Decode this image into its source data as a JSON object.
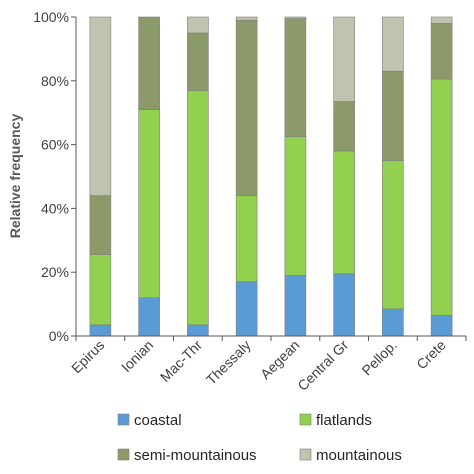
{
  "chart_data": {
    "type": "bar",
    "stacked": true,
    "percent_stacked": true,
    "ylabel": "Relative frequency",
    "xlabel": "",
    "ylim": [
      0,
      100
    ],
    "y_ticks": [
      "0%",
      "20%",
      "40%",
      "60%",
      "80%",
      "100%"
    ],
    "categories": [
      "Epirus",
      "Ionian",
      "Mac-Thr",
      "Thessaly",
      "Aegean",
      "Central Gr",
      "Pellop.",
      "Crete"
    ],
    "series": [
      {
        "name": "coastal",
        "color": "#5b9bd5",
        "values": [
          3.5,
          12,
          3.5,
          17,
          19,
          19.5,
          8.5,
          6.5
        ]
      },
      {
        "name": "flatlands",
        "color": "#92d050",
        "values": [
          22,
          59,
          73.5,
          27,
          43.5,
          38.5,
          46.5,
          74
        ]
      },
      {
        "name": "semi-mountainous",
        "color": "#8c9a69",
        "values": [
          18.5,
          29,
          18,
          55,
          37,
          15.5,
          28,
          17.5
        ]
      },
      {
        "name": "mountainous",
        "color": "#c0c3ae",
        "values": [
          56,
          0,
          5,
          1,
          0.5,
          26.5,
          17,
          2
        ]
      }
    ],
    "grid": false,
    "legend_position": "bottom"
  }
}
